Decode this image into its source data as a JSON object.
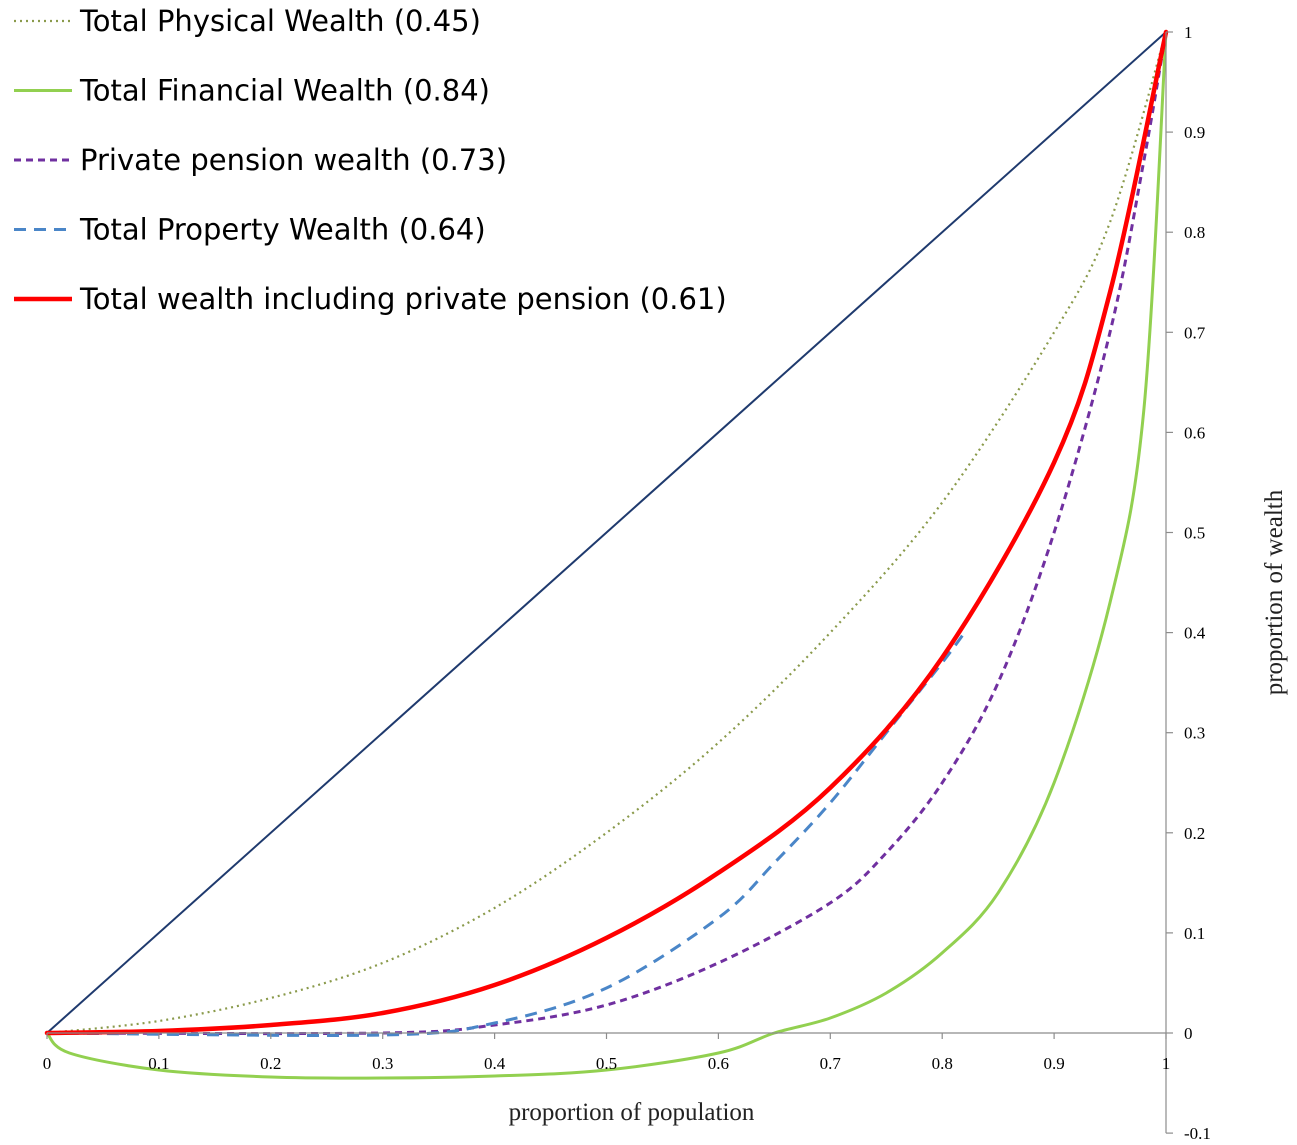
{
  "chart_data": {
    "type": "line",
    "title": "",
    "xlabel": "proportion of population",
    "ylabel": "proportion of wealth",
    "xlim": [
      0,
      1
    ],
    "ylim": [
      -0.1,
      1
    ],
    "x_ticks": [
      "0",
      "0.1",
      "0.2",
      "0.3",
      "0.4",
      "0.5",
      "0.6",
      "0.7",
      "0.8",
      "0.9",
      "1"
    ],
    "y_ticks": [
      "-0.1",
      "0",
      "0.1",
      "0.2",
      "0.3",
      "0.4",
      "0.5",
      "0.6",
      "0.7",
      "0.8",
      "0.9",
      "1"
    ],
    "y_axis_position": "right",
    "grid": false,
    "legend_position": "top-left",
    "equality_line": {
      "color": "#1f3a6e",
      "points": [
        [
          0,
          0
        ],
        [
          1,
          1
        ]
      ]
    },
    "series": [
      {
        "name": "Total Physical Wealth (0.45)",
        "color": "#8a9a4b",
        "style": "dotted",
        "points": [
          [
            0,
            0
          ],
          [
            0.1,
            0.012
          ],
          [
            0.2,
            0.035
          ],
          [
            0.3,
            0.07
          ],
          [
            0.4,
            0.125
          ],
          [
            0.5,
            0.2
          ],
          [
            0.6,
            0.29
          ],
          [
            0.7,
            0.4
          ],
          [
            0.8,
            0.53
          ],
          [
            0.9,
            0.7
          ],
          [
            0.95,
            0.81
          ],
          [
            1,
            1
          ]
        ]
      },
      {
        "name": "Total Financial Wealth (0.84)",
        "color": "#92d050",
        "style": "solid",
        "points": [
          [
            0,
            0
          ],
          [
            0.02,
            -0.02
          ],
          [
            0.1,
            -0.037
          ],
          [
            0.2,
            -0.044
          ],
          [
            0.3,
            -0.045
          ],
          [
            0.4,
            -0.043
          ],
          [
            0.5,
            -0.037
          ],
          [
            0.6,
            -0.02
          ],
          [
            0.65,
            0
          ],
          [
            0.7,
            0.015
          ],
          [
            0.75,
            0.04
          ],
          [
            0.8,
            0.08
          ],
          [
            0.85,
            0.14
          ],
          [
            0.9,
            0.25
          ],
          [
            0.95,
            0.43
          ],
          [
            0.98,
            0.62
          ],
          [
            1,
            1
          ]
        ]
      },
      {
        "name": "Private pension wealth (0.73)",
        "color": "#7030a0",
        "style": "dashed",
        "points": [
          [
            0,
            0
          ],
          [
            0.3,
            0
          ],
          [
            0.4,
            0.008
          ],
          [
            0.5,
            0.028
          ],
          [
            0.6,
            0.07
          ],
          [
            0.7,
            0.13
          ],
          [
            0.75,
            0.18
          ],
          [
            0.8,
            0.25
          ],
          [
            0.85,
            0.35
          ],
          [
            0.9,
            0.5
          ],
          [
            0.95,
            0.7
          ],
          [
            0.98,
            0.87
          ],
          [
            1,
            1
          ]
        ]
      },
      {
        "name": "Total Property Wealth (0.64)",
        "color": "#4a86c8",
        "style": "dashed",
        "points": [
          [
            0,
            0
          ],
          [
            0.3,
            -0.002
          ],
          [
            0.4,
            0.01
          ],
          [
            0.5,
            0.045
          ],
          [
            0.6,
            0.115
          ],
          [
            0.65,
            0.17
          ],
          [
            0.7,
            0.23
          ],
          [
            0.75,
            0.3
          ],
          [
            0.8,
            0.37
          ],
          [
            0.82,
            0.4
          ]
        ]
      },
      {
        "name": "Total wealth including private pension (0.61)",
        "color": "#ff0000",
        "style": "solid-thick",
        "points": [
          [
            0,
            0
          ],
          [
            0.1,
            0.002
          ],
          [
            0.2,
            0.008
          ],
          [
            0.3,
            0.02
          ],
          [
            0.4,
            0.048
          ],
          [
            0.5,
            0.095
          ],
          [
            0.6,
            0.16
          ],
          [
            0.7,
            0.245
          ],
          [
            0.8,
            0.375
          ],
          [
            0.9,
            0.57
          ],
          [
            0.95,
            0.74
          ],
          [
            1,
            1
          ]
        ]
      }
    ]
  }
}
